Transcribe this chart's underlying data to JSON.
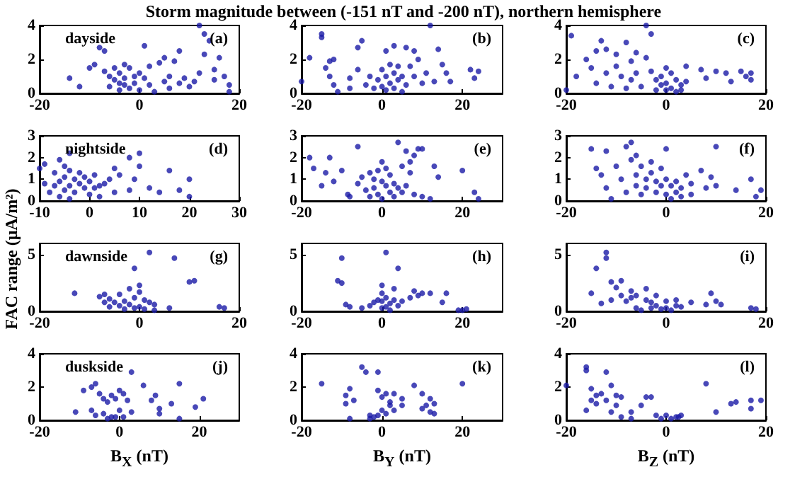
{
  "chart_data": [
    {
      "type": "scatter",
      "title": "Storm magnitude between (-151 nT and -200 nT), northern hemisphere",
      "annotations": [
        "dayside",
        "(a)"
      ],
      "color": "#1a1aa6",
      "marker": "circle",
      "xlim": [
        -20,
        20
      ],
      "xticks": [
        -20,
        0,
        20
      ],
      "ylim": [
        0,
        4
      ],
      "yticks": [
        0,
        2,
        4
      ],
      "x": [
        -14,
        -12,
        -10,
        -9,
        -8,
        -7,
        -7,
        -6,
        -6,
        -5,
        -5,
        -4,
        -4,
        -4,
        -3,
        -3,
        -3,
        -2,
        -2,
        -1,
        -1,
        0,
        0,
        1,
        1,
        2,
        2,
        3,
        4,
        5,
        5,
        6,
        6,
        7,
        8,
        8,
        9,
        10,
        11,
        12,
        13,
        13,
        14,
        15,
        15,
        16,
        17,
        18,
        18,
        12
      ],
      "values": [
        0.9,
        0.4,
        1.5,
        1.7,
        2.7,
        2.5,
        1.3,
        1.0,
        0.4,
        1.5,
        0.8,
        1.2,
        0.6,
        0.2,
        1.7,
        0.9,
        0.5,
        1.5,
        0.3,
        1.0,
        0.6,
        1.2,
        0.2,
        2.8,
        0.9,
        0.5,
        1.6,
        0.1,
        1.8,
        2.1,
        0.7,
        1.0,
        0.3,
        1.9,
        2.5,
        0.6,
        0.9,
        0.4,
        0.7,
        1.2,
        3.5,
        2.3,
        3.1,
        1.4,
        0.8,
        2.1,
        1.0,
        0.5,
        0.1,
        4.0
      ]
    },
    {
      "type": "scatter",
      "annotations": [
        "(b)"
      ],
      "color": "#1a1aa6",
      "marker": "circle",
      "xlim": [
        -20,
        30
      ],
      "xticks": [
        -20,
        0,
        20
      ],
      "ylim": [
        0,
        4
      ],
      "yticks": [
        0,
        2,
        4
      ],
      "x": [
        -20,
        -18,
        -15,
        -15,
        -14,
        -13,
        -13,
        -12,
        -12,
        -11,
        -8,
        -8,
        -6,
        -6,
        -5,
        -4,
        -3,
        -2,
        -1,
        0,
        0,
        1,
        1,
        1,
        2,
        2,
        3,
        3,
        3,
        4,
        4,
        5,
        5,
        6,
        6,
        7,
        8,
        8,
        9,
        10,
        11,
        12,
        13,
        14,
        15,
        16,
        17,
        22,
        23,
        24
      ],
      "values": [
        0.7,
        2.1,
        3.5,
        3.3,
        1.5,
        1.9,
        1.0,
        0.5,
        2.0,
        0.1,
        0.9,
        0.3,
        2.7,
        1.4,
        3.1,
        0.5,
        1.0,
        0.3,
        0.8,
        1.4,
        0.4,
        2.5,
        1.0,
        0.2,
        1.7,
        0.6,
        2.8,
        1.2,
        0.3,
        1.6,
        0.8,
        1.0,
        0.1,
        2.7,
        0.5,
        1.6,
        2.5,
        1.0,
        2.0,
        0.6,
        1.2,
        4.0,
        0.7,
        2.6,
        1.7,
        1.2,
        0.7,
        1.4,
        0.9,
        1.3
      ]
    },
    {
      "type": "scatter",
      "annotations": [
        "(c)"
      ],
      "color": "#1a1aa6",
      "marker": "circle",
      "xlim": [
        -20,
        20
      ],
      "xticks": [
        -20,
        0,
        20
      ],
      "ylim": [
        0,
        4
      ],
      "yticks": [
        0,
        2,
        4
      ],
      "x": [
        -20,
        -19,
        -18,
        -16,
        -15,
        -14,
        -14,
        -13,
        -12,
        -12,
        -11,
        -10,
        -10,
        -9,
        -8,
        -8,
        -7,
        -7,
        -6,
        -6,
        -5,
        -4,
        -4,
        -3,
        -3,
        -2,
        -2,
        -1,
        -1,
        0,
        0,
        0,
        1,
        1,
        2,
        2,
        3,
        3,
        4,
        4,
        7,
        8,
        10,
        12,
        13,
        15,
        16,
        17,
        17
      ],
      "values": [
        0.2,
        3.4,
        1.0,
        2.0,
        1.5,
        2.5,
        0.6,
        3.1,
        2.6,
        1.2,
        0.4,
        2.3,
        1.6,
        1.0,
        3.0,
        0.3,
        1.9,
        0.8,
        2.4,
        1.2,
        0.4,
        4.0,
        2.1,
        3.5,
        1.3,
        0.8,
        0.2,
        1.0,
        0.5,
        1.5,
        0.6,
        0.2,
        1.2,
        0.3,
        0.8,
        0.1,
        0.5,
        0.2,
        1.6,
        0.7,
        1.4,
        0.9,
        1.3,
        1.2,
        0.7,
        1.3,
        1.0,
        0.8,
        1.2
      ]
    },
    {
      "type": "scatter",
      "annotations": [
        "nightside",
        "(d)"
      ],
      "color": "#1a1aa6",
      "marker": "circle",
      "xlim": [
        -10,
        30
      ],
      "xticks": [
        -10,
        0,
        10,
        20,
        30
      ],
      "ylim": [
        0,
        3
      ],
      "yticks": [
        0,
        1,
        2,
        3
      ],
      "x": [
        -10,
        -9,
        -9,
        -8,
        -7,
        -7,
        -6,
        -6,
        -6,
        -5,
        -5,
        -5,
        -4,
        -4,
        -4,
        -4,
        -3,
        -3,
        -2,
        -2,
        -1,
        -1,
        0,
        0,
        1,
        1,
        2,
        2,
        3,
        4,
        5,
        5,
        6,
        8,
        8,
        9,
        10,
        10,
        12,
        14,
        16,
        18,
        20,
        20
      ],
      "values": [
        1.5,
        0.8,
        1.7,
        0.4,
        1.3,
        0.7,
        1.9,
        0.9,
        0.2,
        1.6,
        1.1,
        0.5,
        2.2,
        1.4,
        0.7,
        0.1,
        1.0,
        0.4,
        1.3,
        0.8,
        0.6,
        1.1,
        0.3,
        0.9,
        0.6,
        1.2,
        0.2,
        0.7,
        0.8,
        1.0,
        1.5,
        0.4,
        1.2,
        2.0,
        0.5,
        1.0,
        2.2,
        1.6,
        0.6,
        0.4,
        1.4,
        0.5,
        1.0,
        0.2
      ]
    },
    {
      "type": "scatter",
      "annotations": [
        "(e)"
      ],
      "color": "#1a1aa6",
      "marker": "circle",
      "xlim": [
        -20,
        30
      ],
      "xticks": [
        -20,
        0,
        20
      ],
      "ylim": [
        0,
        3
      ],
      "yticks": [
        0,
        1,
        2,
        3
      ],
      "x": [
        -18,
        -17,
        -15,
        -14,
        -13,
        -12,
        -10,
        -8.5,
        -8,
        -6,
        -6,
        -5,
        -4,
        -3,
        -3,
        -2,
        -2,
        -1,
        -1,
        0,
        0,
        0,
        1,
        1,
        2,
        2,
        3,
        3,
        4,
        4,
        5,
        5,
        6,
        6,
        7,
        7,
        8,
        8,
        9,
        10,
        10,
        12,
        13,
        14,
        20,
        23,
        24
      ],
      "values": [
        2.0,
        1.5,
        0.7,
        1.3,
        2.0,
        0.9,
        1.4,
        0.3,
        0.2,
        2.5,
        0.8,
        1.1,
        0.5,
        1.3,
        0.2,
        1.0,
        0.6,
        1.4,
        0.3,
        1.8,
        0.9,
        0.1,
        1.5,
        0.7,
        1.2,
        0.4,
        0.8,
        0.2,
        2.7,
        0.6,
        1.6,
        0.4,
        2.3,
        0.7,
        1.8,
        1.3,
        2.1,
        0.3,
        2.4,
        2.4,
        0.2,
        0.1,
        1.6,
        1.1,
        1.4,
        0.4,
        0.1
      ]
    },
    {
      "type": "scatter",
      "annotations": [
        "(f)"
      ],
      "color": "#1a1aa6",
      "marker": "circle",
      "xlim": [
        -20,
        20
      ],
      "xticks": [
        -20,
        0,
        20
      ],
      "ylim": [
        0,
        3
      ],
      "yticks": [
        0,
        1,
        2,
        3
      ],
      "x": [
        -15,
        -14,
        -13,
        -12,
        -12,
        -11,
        -10,
        -9,
        -8,
        -8,
        -7,
        -7,
        -6,
        -6,
        -6,
        -5,
        -5,
        -4,
        -4,
        -3,
        -3,
        -2,
        -2,
        -1,
        -1,
        0,
        0,
        0,
        1,
        1,
        2,
        2,
        3,
        3,
        4,
        5,
        5,
        7,
        8,
        9,
        10,
        10,
        14,
        17,
        18,
        19
      ],
      "values": [
        2.4,
        1.5,
        1.2,
        2.3,
        0.6,
        0.1,
        1.6,
        1.0,
        2.5,
        0.4,
        2.7,
        1.9,
        2.1,
        1.2,
        0.7,
        1.6,
        0.3,
        1.0,
        0.6,
        1.8,
        1.3,
        0.9,
        0.4,
        1.5,
        0.7,
        2.4,
        1.0,
        0.3,
        0.7,
        0.1,
        0.9,
        0.4,
        0.6,
        0.2,
        1.2,
        0.8,
        0.3,
        1.4,
        0.6,
        1.1,
        0.7,
        2.5,
        0.5,
        1.0,
        0.2,
        0.5
      ]
    },
    {
      "type": "scatter",
      "ylabel": "FAC range (μA/m²)",
      "annotations": [
        "dawnside",
        "(g)"
      ],
      "color": "#1a1aa6",
      "marker": "circle",
      "xlim": [
        -20,
        20
      ],
      "xticks": [
        -20,
        0,
        20
      ],
      "ylim": [
        0,
        6
      ],
      "yticks": [
        0,
        5
      ],
      "x": [
        -13,
        -8,
        -7,
        -7,
        -6,
        -6,
        -5,
        -4,
        -4,
        -3,
        -3,
        -2,
        -2,
        -1,
        -1,
        0,
        0,
        0,
        -1,
        1,
        1,
        2,
        2,
        3,
        3,
        6,
        7,
        10,
        11,
        16,
        17
      ],
      "values": [
        1.6,
        1.3,
        1.5,
        0.8,
        1.1,
        0.4,
        0.8,
        1.5,
        0.5,
        0.2,
        0.9,
        2.0,
        0.6,
        1.2,
        0.3,
        2.3,
        1.7,
        0.4,
        3.8,
        1.0,
        0.2,
        5.2,
        0.8,
        0.6,
        0.1,
        0.3,
        4.7,
        2.6,
        2.7,
        0.4,
        0.3
      ]
    },
    {
      "type": "scatter",
      "annotations": [
        "(h)"
      ],
      "color": "#1a1aa6",
      "marker": "circle",
      "xlim": [
        -20,
        30
      ],
      "xticks": [
        -20,
        0,
        20
      ],
      "ylim": [
        0,
        6
      ],
      "yticks": [
        0,
        5
      ],
      "x": [
        -10,
        -11,
        -10,
        -9,
        -8,
        -5,
        -3,
        -2,
        -1,
        0,
        0,
        0,
        0,
        1,
        1,
        1,
        2,
        2,
        3,
        3,
        4,
        4,
        5,
        7,
        8,
        9,
        10,
        12,
        15,
        16,
        19,
        20,
        21
      ],
      "values": [
        4.7,
        2.7,
        2.5,
        0.6,
        0.4,
        0.3,
        0.5,
        0.8,
        1.0,
        2.3,
        1.6,
        0.9,
        0.3,
        5.2,
        1.2,
        0.4,
        0.1,
        0.7,
        2.0,
        1.0,
        3.8,
        0.5,
        0.9,
        1.2,
        1.8,
        1.4,
        1.6,
        1.6,
        0.8,
        1.6,
        0.1,
        0.1,
        0.2
      ]
    },
    {
      "type": "scatter",
      "annotations": [
        "(i)"
      ],
      "color": "#1a1aa6",
      "marker": "circle",
      "xlim": [
        -20,
        20
      ],
      "xticks": [
        -20,
        0,
        20
      ],
      "ylim": [
        0,
        6
      ],
      "yticks": [
        0,
        5
      ],
      "x": [
        -15,
        -14,
        -13,
        -12,
        -12,
        -11,
        -11,
        -10,
        -9,
        -9,
        -8,
        -7,
        -7,
        -6,
        -6,
        -5,
        -4,
        -4,
        -3,
        -3,
        -2,
        -2,
        -1,
        0,
        0,
        1,
        2,
        2,
        3,
        5,
        8,
        9,
        10,
        11,
        17,
        18
      ],
      "values": [
        1.6,
        3.8,
        0.7,
        5.2,
        4.7,
        2.6,
        1.0,
        2.1,
        1.4,
        2.7,
        0.9,
        1.8,
        1.2,
        0.3,
        1.4,
        0.1,
        2.0,
        1.0,
        0.8,
        0.3,
        1.4,
        0.5,
        0.2,
        0.9,
        0.3,
        0.1,
        0.5,
        1.0,
        0.4,
        0.8,
        0.6,
        1.6,
        0.9,
        0.6,
        0.3,
        0.2
      ]
    },
    {
      "type": "scatter",
      "xlabel": "B$_{X}$ (nT)",
      "annotations": [
        "duskside",
        "(j)"
      ],
      "color": "#1a1aa6",
      "marker": "circle",
      "xlim": [
        -20,
        30
      ],
      "xticks": [
        -20,
        0,
        20
      ],
      "ylim": [
        0,
        4
      ],
      "yticks": [
        0,
        2,
        4
      ],
      "x": [
        -11,
        -9,
        -7,
        -7,
        -6,
        -6,
        -5,
        -4,
        -4,
        -3,
        -3,
        -2,
        -2,
        -1,
        -1,
        0,
        0,
        1,
        1,
        2,
        3,
        3,
        6,
        8,
        9,
        10,
        10,
        13,
        15,
        15,
        19,
        21
      ],
      "values": [
        0.5,
        1.8,
        2.0,
        0.6,
        2.2,
        0.3,
        1.6,
        0.4,
        1.3,
        1.1,
        0.1,
        1.5,
        0.2,
        1.3,
        0.2,
        0.6,
        1.8,
        1.6,
        0.2,
        1.2,
        2.9,
        0.5,
        2.1,
        1.2,
        1.5,
        0.4,
        0.7,
        1.0,
        2.2,
        0.1,
        0.8,
        1.3
      ]
    },
    {
      "type": "scatter",
      "xlabel": "B$_{Y}$ (nT)",
      "annotations": [
        "(k)"
      ],
      "color": "#1a1aa6",
      "marker": "circle",
      "xlim": [
        -20,
        30
      ],
      "xticks": [
        -20,
        0,
        20
      ],
      "ylim": [
        0,
        4
      ],
      "yticks": [
        0,
        2,
        4
      ],
      "x": [
        -15,
        -9,
        -9,
        -8,
        -8,
        -7,
        -5,
        -4,
        -3,
        -3,
        -2,
        -1,
        -1,
        -1,
        0,
        0,
        1,
        1,
        2,
        2,
        3,
        3,
        5,
        5,
        8,
        10,
        10,
        11,
        12,
        12,
        13,
        13,
        20
      ],
      "values": [
        2.2,
        1.0,
        1.5,
        1.9,
        0.1,
        1.2,
        3.2,
        2.9,
        0.3,
        0.1,
        0.2,
        1.8,
        0.3,
        2.9,
        1.4,
        0.6,
        1.6,
        0.4,
        0.9,
        1.1,
        1.6,
        0.6,
        1.3,
        0.9,
        2.1,
        1.6,
        0.7,
        0.9,
        0.5,
        1.3,
        1.0,
        0.4,
        2.2
      ]
    },
    {
      "type": "scatter",
      "xlabel": "B$_{Z}$ (nT)",
      "annotations": [
        "(l)"
      ],
      "color": "#1a1aa6",
      "marker": "circle",
      "xlim": [
        -20,
        20
      ],
      "xticks": [
        -20,
        0,
        20
      ],
      "ylim": [
        0,
        4
      ],
      "yticks": [
        0,
        2,
        4
      ],
      "x": [
        -20,
        -16,
        -16,
        -16,
        -15,
        -15,
        -14,
        -14,
        -13,
        -12,
        -12,
        -11,
        -11,
        -10,
        -10,
        -9,
        -9,
        -7,
        -7,
        -5,
        -4,
        -3,
        -2,
        -1,
        0,
        1,
        2,
        2.5,
        3,
        8,
        10,
        13,
        14,
        17,
        17,
        19
      ],
      "values": [
        2.1,
        3.0,
        3.2,
        0.6,
        1.2,
        1.9,
        1.5,
        1.0,
        1.6,
        2.9,
        1.2,
        0.5,
        2.1,
        1.5,
        0.9,
        1.4,
        0.2,
        0.5,
        0.1,
        0.9,
        1.4,
        1.4,
        0.3,
        0.1,
        0.3,
        0.1,
        0.2,
        0.2,
        0.3,
        2.2,
        0.5,
        1.0,
        1.1,
        0.7,
        1.2,
        1.2
      ]
    }
  ]
}
